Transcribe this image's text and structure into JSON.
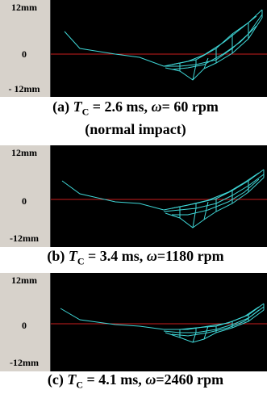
{
  "panels": [
    {
      "y_top": "12mm",
      "y_mid": "0",
      "y_bot": "- 12mm",
      "label": "(a)",
      "tc_sym": "T",
      "tc_sub": "C",
      "tc_val": " = 2.6 ms, ",
      "w_sym": "ω",
      "w_val": "= 60 rpm",
      "note": "(normal impact)"
    },
    {
      "y_top": "12mm",
      "y_mid": "0",
      "y_bot": "-12mm",
      "label": "(b)",
      "tc_sym": "T",
      "tc_sub": "C",
      "tc_val": " = 3.4 ms, ",
      "w_sym": "ω",
      "w_val": "=1180 rpm"
    },
    {
      "y_top": "12mm",
      "y_mid": "0",
      "y_bot": "-12mm",
      "label": "(c)",
      "tc_sym": "T",
      "tc_sub": "C",
      "tc_val": " = 4.1 ms, ",
      "w_sym": "ω",
      "w_val": "=2460 rpm"
    }
  ],
  "colors": {
    "zero_line": "#c81e1e",
    "mesh": "#3fd6d6",
    "plot_bg": "#000000",
    "axis_bg": "#d7d2cb"
  }
}
